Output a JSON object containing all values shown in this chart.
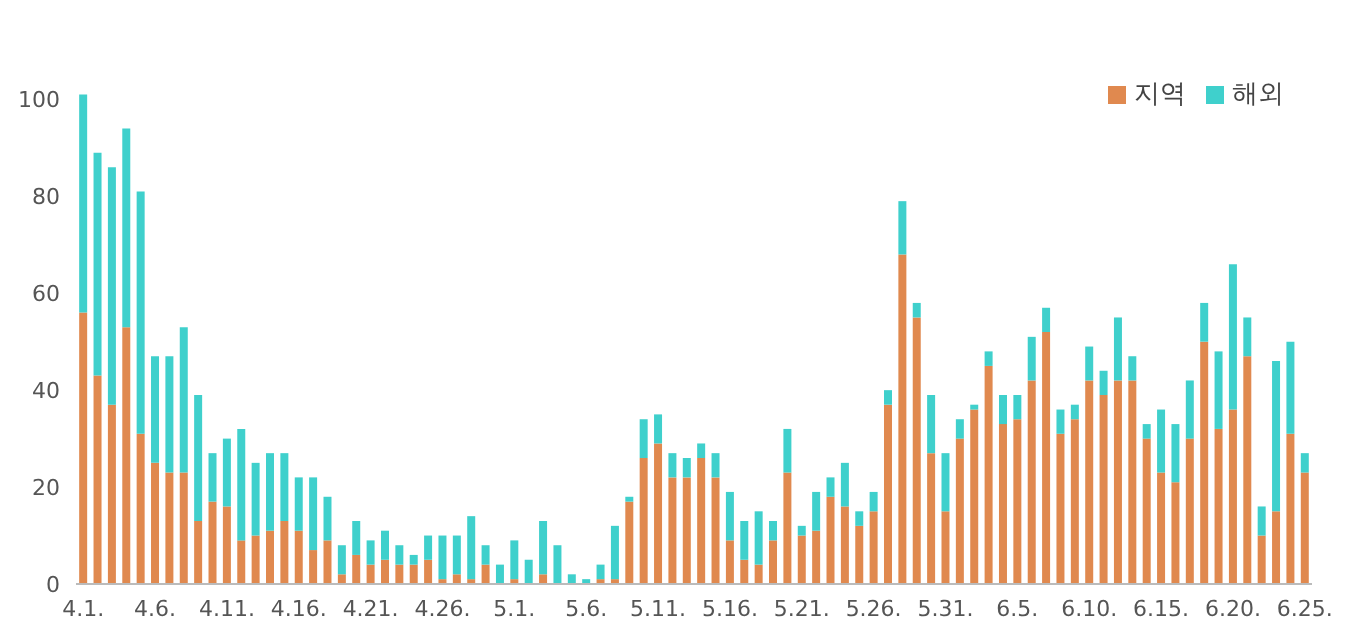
{
  "chart_data": {
    "type": "bar",
    "stacked": true,
    "legend": "top right",
    "categories": [
      "4.1.",
      null,
      null,
      null,
      null,
      "4.6.",
      null,
      null,
      null,
      null,
      "4.11.",
      null,
      null,
      null,
      null,
      "4.16.",
      null,
      null,
      null,
      null,
      "4.21.",
      null,
      null,
      null,
      null,
      "4.26.",
      null,
      null,
      null,
      null,
      "5.1.",
      null,
      null,
      null,
      null,
      "5.6.",
      null,
      null,
      null,
      null,
      "5.11.",
      null,
      null,
      null,
      null,
      "5.16.",
      null,
      null,
      null,
      null,
      "5.21.",
      null,
      null,
      null,
      null,
      "5.26.",
      null,
      null,
      null,
      null,
      "5.31.",
      null,
      null,
      null,
      null,
      "6.5.",
      null,
      null,
      null,
      null,
      "6.10.",
      null,
      null,
      null,
      null,
      "6.15.",
      null,
      null,
      null,
      null,
      "6.20.",
      null,
      null,
      null,
      null,
      "6.25."
    ],
    "series": [
      {
        "name": "지역",
        "color": "#e0894f",
        "values": [
          56,
          43,
          37,
          53,
          31,
          25,
          23,
          23,
          13,
          17,
          16,
          9,
          10,
          11,
          13,
          11,
          7,
          9,
          2,
          6,
          4,
          5,
          4,
          4,
          5,
          1,
          2,
          1,
          4,
          0,
          1,
          0,
          2,
          0,
          0,
          0,
          1,
          1,
          17,
          26,
          29,
          22,
          22,
          26,
          22,
          9,
          5,
          4,
          9,
          23,
          10,
          11,
          18,
          16,
          12,
          15,
          37,
          68,
          55,
          27,
          15,
          30,
          36,
          45,
          33,
          34,
          42,
          52,
          31,
          34,
          42,
          39,
          42,
          42,
          30,
          23,
          21,
          30,
          50,
          32,
          36,
          47,
          10,
          15,
          31,
          23
        ]
      },
      {
        "name": "해외",
        "color": "#3fd0cc",
        "values": [
          45,
          46,
          49,
          41,
          50,
          22,
          24,
          30,
          26,
          10,
          14,
          23,
          15,
          16,
          14,
          11,
          15,
          9,
          6,
          7,
          5,
          6,
          4,
          2,
          5,
          9,
          8,
          13,
          4,
          4,
          8,
          5,
          11,
          8,
          2,
          1,
          3,
          11,
          1,
          8,
          6,
          5,
          4,
          3,
          5,
          10,
          8,
          11,
          4,
          9,
          2,
          8,
          4,
          9,
          3,
          4,
          3,
          11,
          3,
          12,
          12,
          4,
          1,
          3,
          6,
          5,
          9,
          5,
          5,
          3,
          7,
          5,
          13,
          5,
          3,
          13,
          12,
          12,
          8,
          16,
          30,
          8,
          6,
          31,
          19,
          4
        ]
      }
    ],
    "ylim": [
      0,
      104
    ],
    "yticks": [
      0,
      20,
      40,
      60,
      80,
      100
    ]
  }
}
